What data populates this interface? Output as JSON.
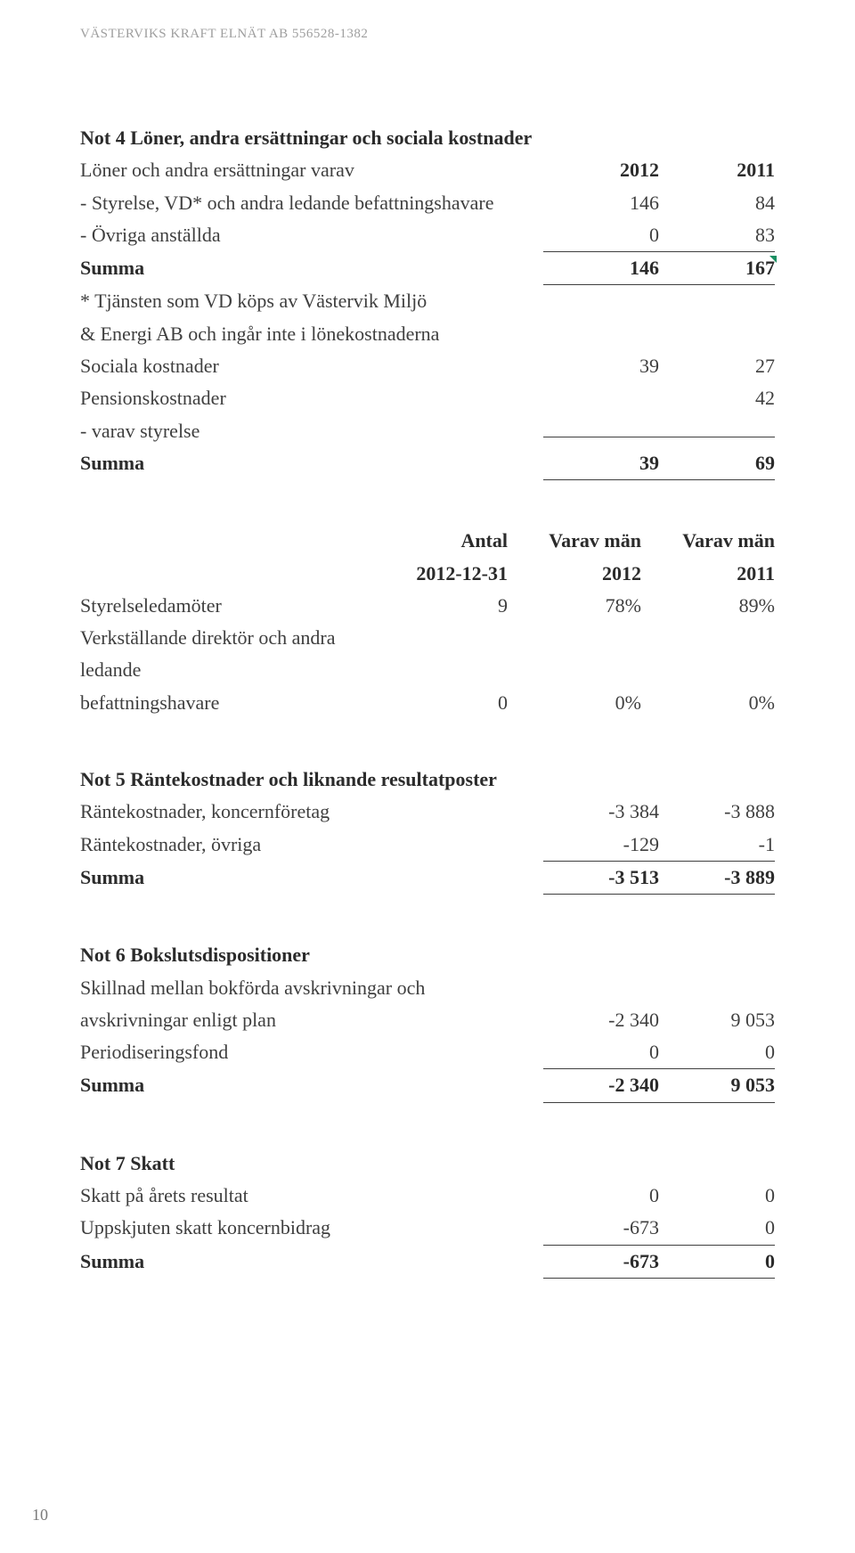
{
  "header": "VÄSTERVIKS KRAFT ELNÄT AB 556528-1382",
  "page_number": "10",
  "not4": {
    "title": "Not 4 Löner, andra ersättningar och sociala kostnader",
    "r1_label": "Löner och andra ersättningar varav",
    "r1_c1": "2012",
    "r1_c2": "2011",
    "r2_label": "- Styrelse, VD* och andra ledande befattningshavare",
    "r2_c1": "146",
    "r2_c2": "84",
    "r3_label": "- Övriga anställda",
    "r3_c1": "0",
    "r3_c2": "83",
    "r4_label": "Summa",
    "r4_c1": "146",
    "r4_c2": "167",
    "note1": "* Tjänsten som VD köps av Västervik Miljö",
    "note2": "& Energi AB och ingår inte i lönekostnaderna",
    "r5_label": "Sociala kostnader",
    "r5_c1": "39",
    "r5_c2": "27",
    "r6_label": "Pensionskostnader",
    "r6_c1": "",
    "r6_c2": "42",
    "r7_label": "- varav styrelse",
    "r8_label": "Summa",
    "r8_c1": "39",
    "r8_c2": "69"
  },
  "board": {
    "h1": "Antal",
    "h1b": "2012-12-31",
    "h2": "Varav män",
    "h2b": "2012",
    "h3": "Varav män",
    "h3b": "2011",
    "r1_label": "Styrelseledamöter",
    "r1_g1": "9",
    "r1_g2": "78%",
    "r1_g3": "89%",
    "r2a_label": "Verkställande direktör och andra ledande",
    "r2b_label": "befattningshavare",
    "r2_g1": "0",
    "r2_g2": "0%",
    "r2_g3": "0%"
  },
  "not5": {
    "title": "Not 5 Räntekostnader och liknande resultatposter",
    "r1_label": "Räntekostnader, koncernföretag",
    "r1_c1": "-3 384",
    "r1_c2": "-3 888",
    "r2_label": "Räntekostnader, övriga",
    "r2_c1": "-129",
    "r2_c2": "-1",
    "r3_label": "Summa",
    "r3_c1": "-3 513",
    "r3_c2": "-3 889"
  },
  "not6": {
    "title": "Not 6 Bokslutsdispositioner",
    "r1_label": "Skillnad mellan bokförda avskrivningar och",
    "r2_label": "avskrivningar enligt plan",
    "r2_c1": "-2 340",
    "r2_c2": "9 053",
    "r3_label": "Periodiseringsfond",
    "r3_c1": "0",
    "r3_c2": "0",
    "r4_label": "Summa",
    "r4_c1": "-2 340",
    "r4_c2": "9 053"
  },
  "not7": {
    "title": "Not 7 Skatt",
    "r1_label": "Skatt på årets resultat",
    "r1_c1": "0",
    "r1_c2": "0",
    "r2_label": "Uppskjuten skatt koncernbidrag",
    "r2_c1": "-673",
    "r2_c2": "0",
    "r3_label": "Summa",
    "r3_c1": "-673",
    "r3_c2": "0"
  }
}
